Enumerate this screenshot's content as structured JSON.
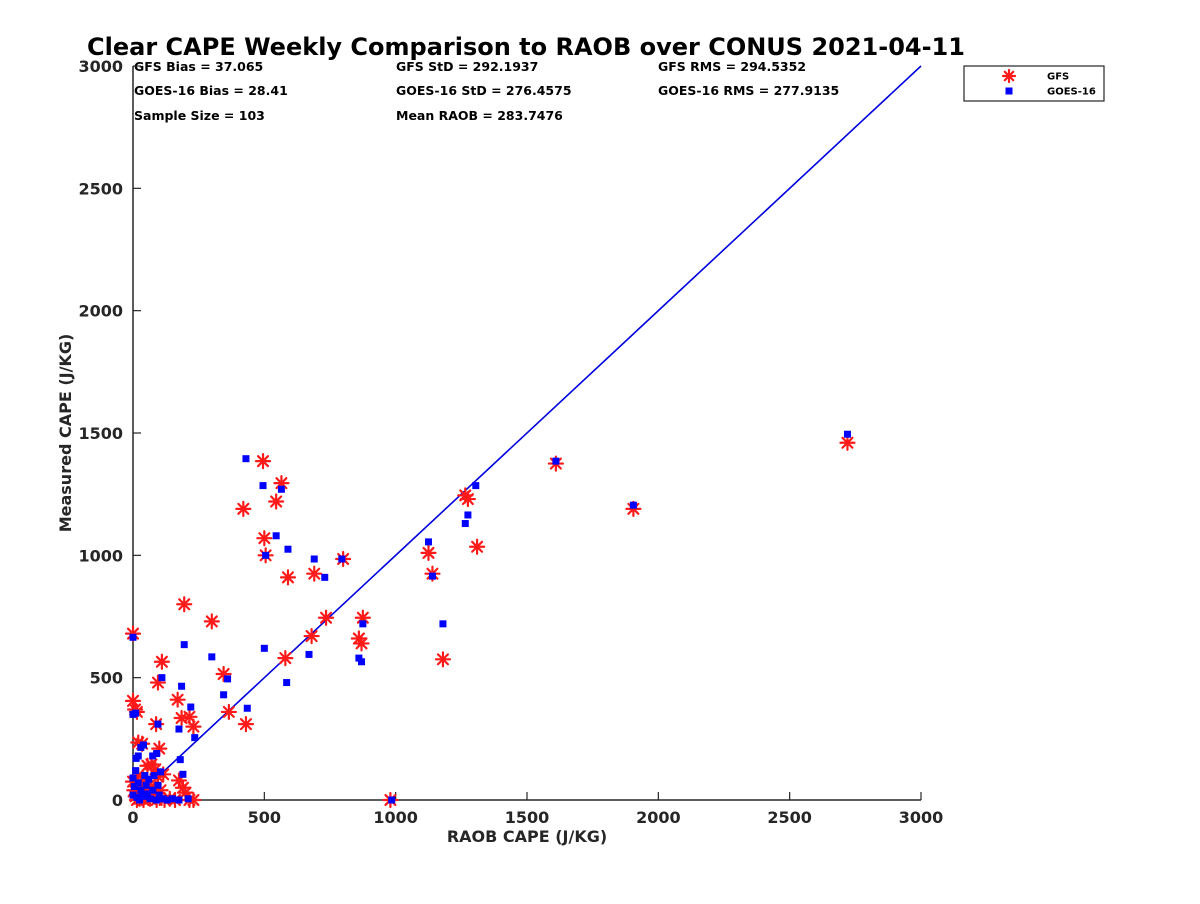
{
  "chart_data": {
    "type": "scatter",
    "title": "Clear CAPE Weekly Comparison to RAOB over CONUS 2021-04-11",
    "xlabel": "RAOB CAPE (J/KG)",
    "ylabel": "Measured CAPE (J/KG)",
    "xlim": [
      0,
      3000
    ],
    "ylim": [
      0,
      3000
    ],
    "xticks": [
      0,
      500,
      1000,
      1500,
      2000,
      2500,
      3000
    ],
    "yticks": [
      0,
      500,
      1000,
      1500,
      2000,
      2500,
      3000
    ],
    "xtick_labels": [
      "0",
      "500",
      "1000",
      "1500",
      "2000",
      "2500",
      "3000"
    ],
    "ytick_labels": [
      "0",
      "500",
      "1000",
      "1500",
      "2000",
      "2500",
      "3000"
    ],
    "grid": false,
    "legend_position": "top-right",
    "reference_line": {
      "x": [
        0,
        3000
      ],
      "y": [
        0,
        3000
      ],
      "color": "#0000e0"
    },
    "stats": {
      "gfs_bias": "GFS Bias = 37.065",
      "gfs_std": "GFS StD = 292.1937",
      "gfs_rms": "GFS RMS = 294.5352",
      "goes_bias": "GOES-16 Bias = 28.41",
      "goes_std": "GOES-16 StD = 276.4575",
      "goes_rms": "GOES-16 RMS = 277.9135",
      "sample_size": "Sample Size = 103",
      "mean_raob": "Mean RAOB = 283.7476"
    },
    "series": [
      {
        "name": "GFS",
        "marker": "asterisk",
        "color": "#ff1a1a",
        "points": [
          [
            0,
            680
          ],
          [
            0,
            405
          ],
          [
            8,
            370
          ],
          [
            15,
            360
          ],
          [
            20,
            235
          ],
          [
            35,
            230
          ],
          [
            55,
            140
          ],
          [
            70,
            145
          ],
          [
            85,
            125
          ],
          [
            88,
            310
          ],
          [
            95,
            480
          ],
          [
            100,
            210
          ],
          [
            110,
            565
          ],
          [
            115,
            105
          ],
          [
            170,
            410
          ],
          [
            175,
            80
          ],
          [
            185,
            335
          ],
          [
            190,
            50
          ],
          [
            195,
            800
          ],
          [
            215,
            340
          ],
          [
            230,
            300
          ],
          [
            300,
            730
          ],
          [
            345,
            515
          ],
          [
            365,
            360
          ],
          [
            420,
            1190
          ],
          [
            430,
            310
          ],
          [
            495,
            1385
          ],
          [
            500,
            1070
          ],
          [
            505,
            1000
          ],
          [
            545,
            1220
          ],
          [
            565,
            1295
          ],
          [
            580,
            580
          ],
          [
            590,
            910
          ],
          [
            680,
            670
          ],
          [
            690,
            925
          ],
          [
            735,
            745
          ],
          [
            800,
            985
          ],
          [
            860,
            660
          ],
          [
            870,
            640
          ],
          [
            875,
            745
          ],
          [
            980,
            0
          ],
          [
            1125,
            1010
          ],
          [
            1140,
            925
          ],
          [
            1180,
            575
          ],
          [
            1265,
            1245
          ],
          [
            1275,
            1230
          ],
          [
            1310,
            1035
          ],
          [
            1610,
            1375
          ],
          [
            1905,
            1190
          ],
          [
            2720,
            1460
          ],
          [
            0,
            75
          ],
          [
            5,
            40
          ],
          [
            10,
            15
          ],
          [
            15,
            0
          ],
          [
            20,
            100
          ],
          [
            25,
            5
          ],
          [
            30,
            60
          ],
          [
            35,
            30
          ],
          [
            40,
            0
          ],
          [
            45,
            20
          ],
          [
            50,
            75
          ],
          [
            60,
            10
          ],
          [
            65,
            5
          ],
          [
            70,
            55
          ],
          [
            80,
            30
          ],
          [
            90,
            0
          ],
          [
            95,
            95
          ],
          [
            105,
            40
          ],
          [
            120,
            0
          ],
          [
            140,
            5
          ],
          [
            160,
            0
          ],
          [
            200,
            30
          ],
          [
            215,
            0
          ],
          [
            230,
            0
          ]
        ]
      },
      {
        "name": "GOES-16",
        "marker": "square",
        "color": "#0000ff",
        "points": [
          [
            0,
            665
          ],
          [
            0,
            350
          ],
          [
            10,
            355
          ],
          [
            12,
            170
          ],
          [
            20,
            180
          ],
          [
            30,
            215
          ],
          [
            40,
            225
          ],
          [
            75,
            180
          ],
          [
            90,
            190
          ],
          [
            95,
            310
          ],
          [
            110,
            500
          ],
          [
            175,
            290
          ],
          [
            180,
            165
          ],
          [
            185,
            465
          ],
          [
            190,
            105
          ],
          [
            195,
            635
          ],
          [
            220,
            380
          ],
          [
            235,
            255
          ],
          [
            300,
            585
          ],
          [
            345,
            430
          ],
          [
            360,
            495
          ],
          [
            430,
            1395
          ],
          [
            435,
            375
          ],
          [
            495,
            1285
          ],
          [
            500,
            620
          ],
          [
            505,
            1000
          ],
          [
            545,
            1080
          ],
          [
            565,
            1270
          ],
          [
            585,
            480
          ],
          [
            590,
            1025
          ],
          [
            670,
            595
          ],
          [
            690,
            985
          ],
          [
            730,
            910
          ],
          [
            795,
            985
          ],
          [
            860,
            580
          ],
          [
            870,
            565
          ],
          [
            875,
            720
          ],
          [
            985,
            0
          ],
          [
            1125,
            1055
          ],
          [
            1140,
            915
          ],
          [
            1180,
            720
          ],
          [
            1265,
            1130
          ],
          [
            1275,
            1165
          ],
          [
            1305,
            1285
          ],
          [
            1610,
            1385
          ],
          [
            1905,
            1205
          ],
          [
            2720,
            1495
          ],
          [
            0,
            90
          ],
          [
            0,
            20
          ],
          [
            5,
            55
          ],
          [
            10,
            120
          ],
          [
            15,
            10
          ],
          [
            20,
            70
          ],
          [
            25,
            0
          ],
          [
            30,
            40
          ],
          [
            40,
            15
          ],
          [
            45,
            100
          ],
          [
            50,
            60
          ],
          [
            55,
            25
          ],
          [
            60,
            85
          ],
          [
            65,
            5
          ],
          [
            75,
            40
          ],
          [
            80,
            100
          ],
          [
            90,
            0
          ],
          [
            95,
            60
          ],
          [
            100,
            20
          ],
          [
            105,
            115
          ],
          [
            115,
            5
          ],
          [
            130,
            0
          ],
          [
            150,
            5
          ],
          [
            175,
            0
          ],
          [
            210,
            5
          ]
        ]
      }
    ]
  }
}
